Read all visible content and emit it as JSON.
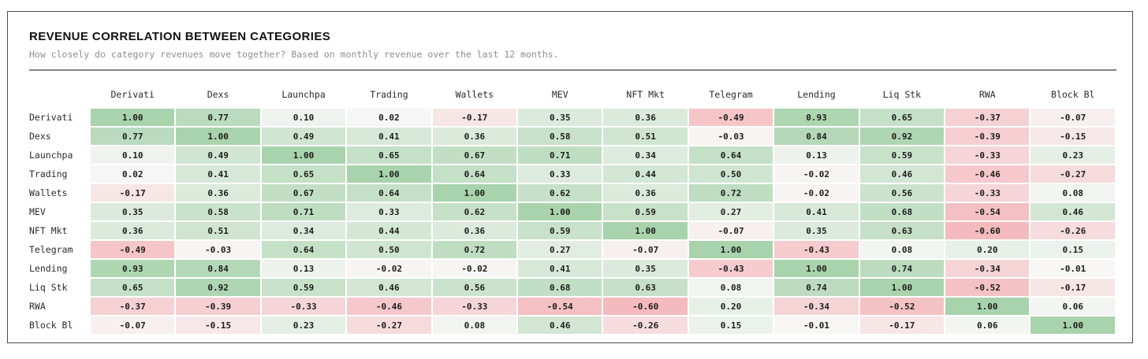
{
  "card": {
    "title": "REVENUE CORRELATION BETWEEN CATEGORIES",
    "subtitle": "How closely do category revenues move together? Based on monthly revenue over the last 12 months."
  },
  "chart_data": {
    "type": "heatmap",
    "title": "REVENUE CORRELATION BETWEEN CATEGORIES",
    "subtitle": "How closely do category revenues move together? Based on monthly revenue over the last 12 months.",
    "categories": [
      "Derivati",
      "Dexs",
      "Launchpa",
      "Trading",
      "Wallets",
      "MEV",
      "NFT Mkt",
      "Telegram",
      "Lending",
      "Liq Stk",
      "RWA",
      "Block Bl"
    ],
    "matrix": [
      [
        1.0,
        0.77,
        0.1,
        0.02,
        -0.17,
        0.35,
        0.36,
        -0.49,
        0.93,
        0.65,
        -0.37,
        -0.07
      ],
      [
        0.77,
        1.0,
        0.49,
        0.41,
        0.36,
        0.58,
        0.51,
        -0.03,
        0.84,
        0.92,
        -0.39,
        -0.15
      ],
      [
        0.1,
        0.49,
        1.0,
        0.65,
        0.67,
        0.71,
        0.34,
        0.64,
        0.13,
        0.59,
        -0.33,
        0.23
      ],
      [
        0.02,
        0.41,
        0.65,
        1.0,
        0.64,
        0.33,
        0.44,
        0.5,
        -0.02,
        0.46,
        -0.46,
        -0.27
      ],
      [
        -0.17,
        0.36,
        0.67,
        0.64,
        1.0,
        0.62,
        0.36,
        0.72,
        -0.02,
        0.56,
        -0.33,
        0.08
      ],
      [
        0.35,
        0.58,
        0.71,
        0.33,
        0.62,
        1.0,
        0.59,
        0.27,
        0.41,
        0.68,
        -0.54,
        0.46
      ],
      [
        0.36,
        0.51,
        0.34,
        0.44,
        0.36,
        0.59,
        1.0,
        -0.07,
        0.35,
        0.63,
        -0.6,
        -0.26
      ],
      [
        -0.49,
        -0.03,
        0.64,
        0.5,
        0.72,
        0.27,
        -0.07,
        1.0,
        -0.43,
        0.08,
        0.2,
        0.15
      ],
      [
        0.93,
        0.84,
        0.13,
        -0.02,
        -0.02,
        0.41,
        0.35,
        -0.43,
        1.0,
        0.74,
        -0.34,
        -0.01
      ],
      [
        0.65,
        0.92,
        0.59,
        0.46,
        0.56,
        0.68,
        0.63,
        0.08,
        0.74,
        1.0,
        -0.52,
        -0.17
      ],
      [
        -0.37,
        -0.39,
        -0.33,
        -0.46,
        -0.33,
        -0.54,
        -0.6,
        0.2,
        -0.34,
        -0.52,
        1.0,
        0.06
      ],
      [
        -0.07,
        -0.15,
        0.23,
        -0.27,
        0.08,
        0.46,
        -0.26,
        0.15,
        -0.01,
        -0.17,
        0.06,
        1.0
      ]
    ],
    "value_range": [
      -1,
      1
    ],
    "value_decimals": 2,
    "legend": "none",
    "grid": "off",
    "colors": {
      "positive_max": "#a8d3ac",
      "negative_max": "#f29198",
      "zero": "#f7f7f6"
    }
  }
}
